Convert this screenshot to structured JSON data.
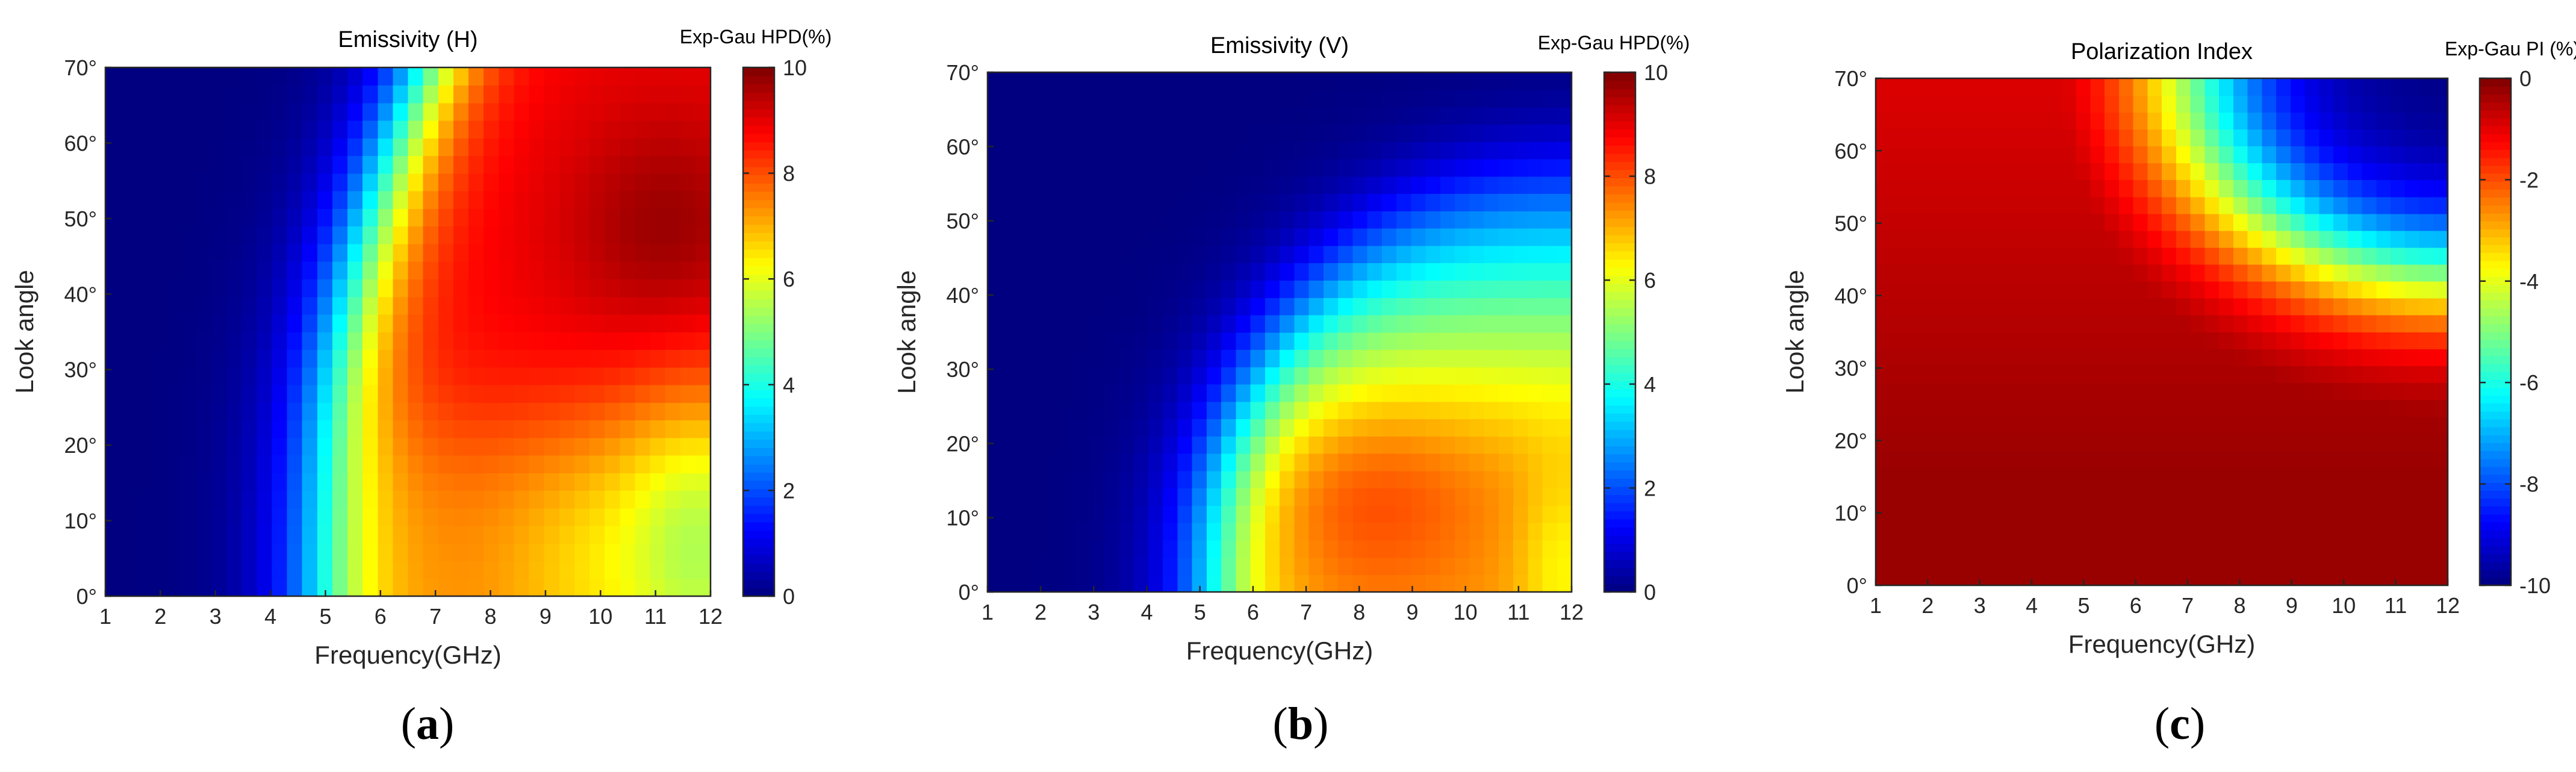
{
  "chart_data": [
    {
      "type": "heatmap",
      "title": "Emissivity (H)",
      "xlabel": "Frequency(GHz)",
      "ylabel": "Look angle",
      "x_range": [
        1,
        12
      ],
      "y_range": [
        0,
        70
      ],
      "x_ticks": [
        "1",
        "2",
        "3",
        "4",
        "5",
        "6",
        "7",
        "8",
        "9",
        "10",
        "11",
        "12"
      ],
      "y_ticks": [
        "0°",
        "10°",
        "20°",
        "30°",
        "40°",
        "50°",
        "60°",
        "70°"
      ],
      "colorbar_label": "Exp-Gau HPD(%)",
      "colorbar_ticks": [
        "0",
        "2",
        "4",
        "6",
        "8",
        "10"
      ],
      "clim": [
        0,
        10
      ],
      "model": "h",
      "panel_label": "a"
    },
    {
      "type": "heatmap",
      "title": "Emissivity (V)",
      "xlabel": "Frequency(GHz)",
      "ylabel": "Look angle",
      "x_range": [
        1,
        12
      ],
      "y_range": [
        0,
        70
      ],
      "x_ticks": [
        "1",
        "2",
        "3",
        "4",
        "5",
        "6",
        "7",
        "8",
        "9",
        "10",
        "11",
        "12"
      ],
      "y_ticks": [
        "0°",
        "10°",
        "20°",
        "30°",
        "40°",
        "50°",
        "60°",
        "70°"
      ],
      "colorbar_label": "Exp-Gau HPD(%)",
      "colorbar_ticks": [
        "0",
        "2",
        "4",
        "6",
        "8",
        "10"
      ],
      "clim": [
        0,
        10
      ],
      "model": "v",
      "panel_label": "b"
    },
    {
      "type": "heatmap",
      "title": "Polarization Index",
      "xlabel": "Frequency(GHz)",
      "ylabel": "Look angle",
      "x_range": [
        1,
        12
      ],
      "y_range": [
        0,
        70
      ],
      "x_ticks": [
        "1",
        "2",
        "3",
        "4",
        "5",
        "6",
        "7",
        "8",
        "9",
        "10",
        "11",
        "12"
      ],
      "y_ticks": [
        "0°",
        "10°",
        "20°",
        "30°",
        "40°",
        "50°",
        "60°",
        "70°"
      ],
      "colorbar_label": "Exp-Gau PI (%)",
      "colorbar_ticks": [
        "-10",
        "-8",
        "-6",
        "-4",
        "-2",
        "0"
      ],
      "clim": [
        -10,
        0
      ],
      "model": "pi",
      "panel_label": "c"
    }
  ],
  "labels": {
    "a": {
      "open": "(",
      "letter": "a",
      "close": ")"
    },
    "b": {
      "open": "(",
      "letter": "b",
      "close": ")"
    },
    "c": {
      "open": "(",
      "letter": "c",
      "close": ")"
    }
  }
}
